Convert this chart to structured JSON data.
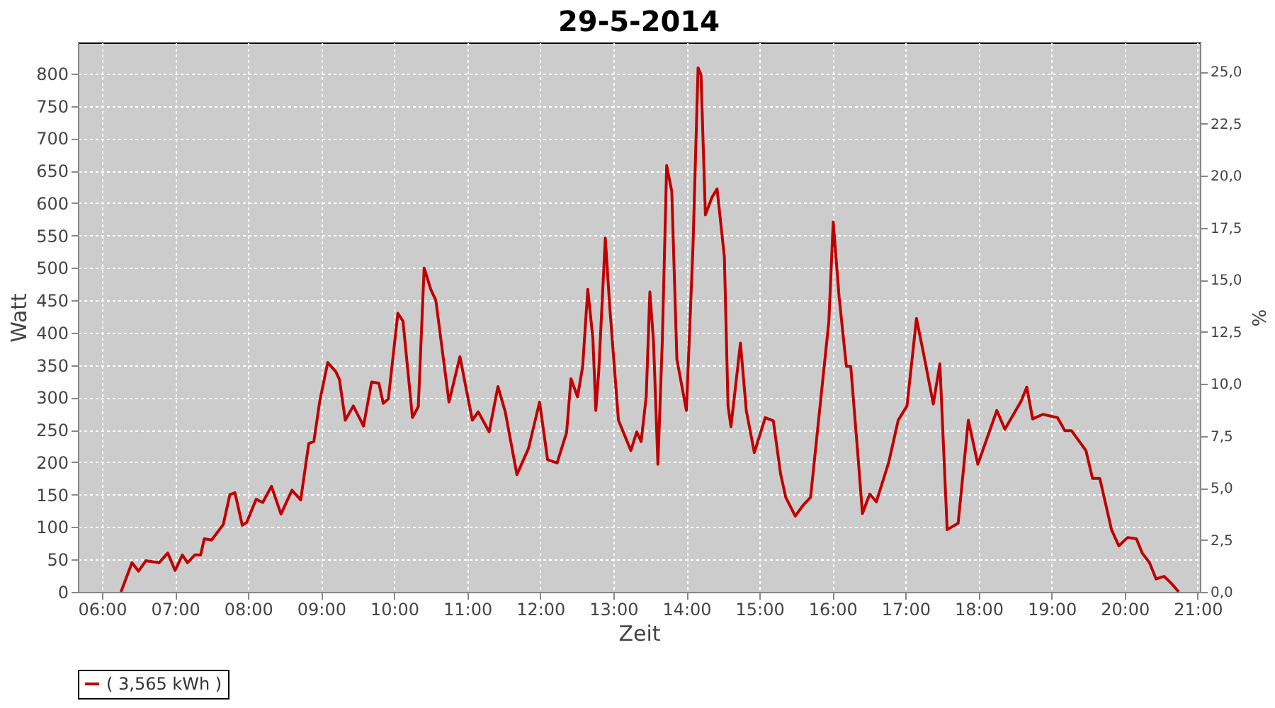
{
  "chart_data": {
    "type": "line",
    "title": "29-5-2014",
    "xlabel": "Zeit",
    "ylabel": "Watt",
    "y2label": "%",
    "x": [
      6.26,
      6.41,
      6.5,
      6.6,
      6.78,
      6.9,
      7.0,
      7.1,
      7.17,
      7.27,
      7.35,
      7.4,
      7.5,
      7.66,
      7.75,
      7.82,
      7.92,
      7.98,
      8.11,
      8.2,
      8.32,
      8.45,
      8.6,
      8.72,
      8.83,
      8.9,
      8.98,
      9.09,
      9.2,
      9.25,
      9.33,
      9.44,
      9.58,
      9.69,
      9.79,
      9.85,
      9.92,
      10.05,
      10.12,
      10.25,
      10.33,
      10.41,
      10.5,
      10.57,
      10.75,
      10.9,
      11.0,
      11.07,
      11.15,
      11.3,
      11.42,
      11.52,
      11.68,
      11.84,
      11.99,
      12.1,
      12.23,
      12.36,
      12.42,
      12.51,
      12.58,
      12.65,
      12.72,
      12.76,
      12.8,
      12.89,
      12.95,
      13.07,
      13.24,
      13.32,
      13.38,
      13.45,
      13.5,
      13.55,
      13.61,
      13.67,
      13.73,
      13.8,
      13.87,
      14.0,
      14.09,
      14.16,
      14.2,
      14.26,
      14.35,
      14.42,
      14.52,
      14.57,
      14.61,
      14.74,
      14.82,
      14.93,
      15.08,
      15.19,
      15.29,
      15.36,
      15.49,
      15.6,
      15.7,
      15.83,
      15.95,
      16.01,
      16.09,
      16.19,
      16.25,
      16.35,
      16.41,
      16.51,
      16.6,
      16.77,
      16.9,
      17.02,
      17.15,
      17.25,
      17.38,
      17.47,
      17.57,
      17.72,
      17.86,
      17.99,
      18.25,
      18.36,
      18.58,
      18.66,
      18.74,
      18.88,
      19.08,
      19.18,
      19.27,
      19.47,
      19.56,
      19.66,
      19.82,
      19.92,
      20.04,
      20.16,
      20.24,
      20.34,
      20.43,
      20.54,
      20.64,
      20.74
    ],
    "series": [
      {
        "name": "( 3,565 kWh )",
        "color": "#c00000",
        "values": [
          0,
          45,
          32,
          48,
          45,
          60,
          33,
          57,
          45,
          57,
          57,
          82,
          80,
          104,
          150,
          153,
          103,
          107,
          143,
          138,
          163,
          120,
          157,
          142,
          229,
          232,
          294,
          354,
          340,
          328,
          265,
          287,
          256,
          324,
          322,
          291,
          298,
          430,
          418,
          269,
          286,
          500,
          467,
          450,
          293,
          363,
          305,
          265,
          278,
          247,
          317,
          278,
          181,
          222,
          293,
          204,
          199,
          246,
          329,
          301,
          348,
          467,
          391,
          280,
          340,
          546,
          441,
          265,
          218,
          247,
          232,
          301,
          463,
          386,
          197,
          386,
          658,
          618,
          359,
          280,
          532,
          809,
          798,
          582,
          609,
          622,
          517,
          287,
          255,
          384,
          280,
          215,
          269,
          264,
          182,
          146,
          117,
          134,
          146,
          287,
          417,
          571,
          456,
          348,
          348,
          208,
          121,
          151,
          139,
          200,
          265,
          287,
          422,
          366,
          290,
          352,
          96,
          106,
          265,
          197,
          280,
          251,
          294,
          316,
          267,
          274,
          269,
          249,
          249,
          218,
          175,
          175,
          96,
          71,
          84,
          82,
          60,
          45,
          20,
          24,
          13,
          0
        ]
      }
    ],
    "xlim": [
      5.67,
      21.03
    ],
    "xticks": [
      {
        "value": 6,
        "label": "06:00"
      },
      {
        "value": 7,
        "label": "07:00"
      },
      {
        "value": 8,
        "label": "08:00"
      },
      {
        "value": 9,
        "label": "09:00"
      },
      {
        "value": 10,
        "label": "10:00"
      },
      {
        "value": 11,
        "label": "11:00"
      },
      {
        "value": 12,
        "label": "12:00"
      },
      {
        "value": 13,
        "label": "13:00"
      },
      {
        "value": 14,
        "label": "14:00"
      },
      {
        "value": 15,
        "label": "15:00"
      },
      {
        "value": 16,
        "label": "16:00"
      },
      {
        "value": 17,
        "label": "17:00"
      },
      {
        "value": 18,
        "label": "18:00"
      },
      {
        "value": 19,
        "label": "19:00"
      },
      {
        "value": 20,
        "label": "20:00"
      },
      {
        "value": 21,
        "label": "21:00"
      }
    ],
    "ylim": [
      0,
      848
    ],
    "yticks": [
      0,
      50,
      100,
      150,
      200,
      250,
      300,
      350,
      400,
      450,
      500,
      550,
      600,
      650,
      700,
      750,
      800
    ],
    "y2lim": [
      0,
      26.4
    ],
    "y2ticks": [
      {
        "value": 0,
        "label": "0,0"
      },
      {
        "value": 2.5,
        "label": "2,5"
      },
      {
        "value": 5,
        "label": "5,0"
      },
      {
        "value": 7.5,
        "label": "7,5"
      },
      {
        "value": 10,
        "label": "10,0"
      },
      {
        "value": 12.5,
        "label": "12,5"
      },
      {
        "value": 15,
        "label": "15,0"
      },
      {
        "value": 17.5,
        "label": "17,5"
      },
      {
        "value": 20,
        "label": "20,0"
      },
      {
        "value": 22.5,
        "label": "22,5"
      },
      {
        "value": 25,
        "label": "25,0"
      }
    ],
    "grid": true,
    "legend": "bottom",
    "line_style": "solid"
  }
}
